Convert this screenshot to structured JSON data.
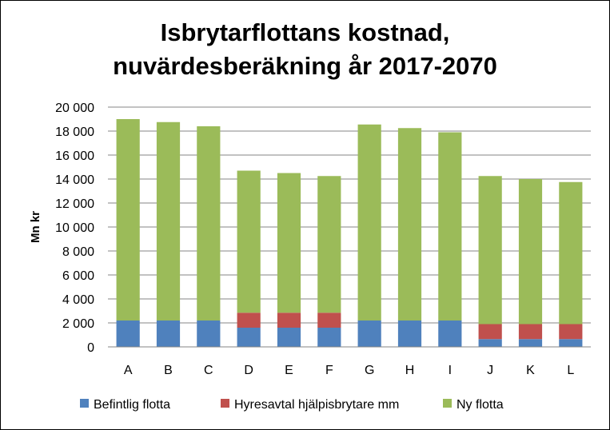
{
  "chart_data": {
    "type": "bar",
    "stacked": true,
    "title_line1": "Isbrytarflottans kostnad,",
    "title_line2": "nuvärdesberäkning år 2017-2070",
    "ylabel": "Mn kr",
    "ylim": [
      0,
      20000
    ],
    "yticks": [
      "0",
      "2 000",
      "4 000",
      "6 000",
      "8 000",
      "10 000",
      "12 000",
      "14 000",
      "16 000",
      "18 000",
      "20 000"
    ],
    "grid": true,
    "legend_position": "bottom",
    "categories": [
      "A",
      "B",
      "C",
      "D",
      "E",
      "F",
      "G",
      "H",
      "I",
      "J",
      "K",
      "L"
    ],
    "series": [
      {
        "name": "Befintlig flotta",
        "color": "#4f81bd",
        "values": [
          2200,
          2200,
          2200,
          1600,
          1600,
          1600,
          2200,
          2200,
          2200,
          650,
          650,
          650
        ]
      },
      {
        "name": "Hyresavtal hjälpisbrytare mm",
        "color": "#c0504d",
        "values": [
          0,
          0,
          0,
          1250,
          1250,
          1250,
          0,
          0,
          0,
          1250,
          1250,
          1250
        ]
      },
      {
        "name": "Ny flotta",
        "color": "#9bbb59",
        "values": [
          16800,
          16550,
          16200,
          11850,
          11650,
          11400,
          16350,
          16050,
          15700,
          12350,
          12100,
          11850
        ]
      }
    ]
  }
}
